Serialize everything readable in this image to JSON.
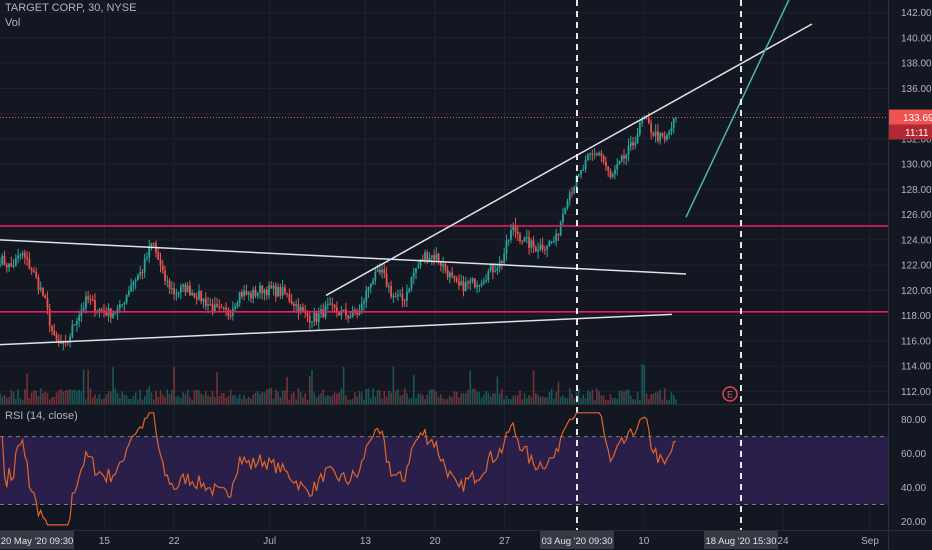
{
  "header": {
    "symbol_title": "TARGET CORP, 30, NYSE",
    "volume_label": "Vol",
    "rsi_label": "RSI (14, close)"
  },
  "price_badges": {
    "last_price": "133.69",
    "countdown": "11:11"
  },
  "earnings_marker": "E",
  "time_badges": {
    "start": "20 May '20  09:30",
    "cursor_1": "03 Aug '20  09:30",
    "cursor_2": "18 Aug '20  15:30"
  },
  "colors": {
    "background": "#131722",
    "up": "#26a69a",
    "down": "#ef5350",
    "rsi_line": "#e0652a",
    "rsi_band": "#2a1f4a",
    "hline": "#e91e63",
    "trendline": "#e0e3eb",
    "teal_line": "#4db6ac"
  },
  "chart_data": [
    {
      "type": "candlestick",
      "title": "TARGET CORP, 30, NYSE",
      "interval_minutes": 30,
      "ylim": [
        111,
        143
      ],
      "y_ticks": [
        112,
        114,
        116,
        118,
        120,
        122,
        124,
        126,
        128,
        130,
        132,
        134,
        136,
        138,
        140,
        142
      ],
      "x_tick_labels": [
        "15",
        "22",
        "Jul",
        "13",
        "20",
        "27",
        "10",
        "24",
        "Sep"
      ],
      "last_price": 133.69,
      "horizontal_levels": [
        125.1,
        118.3
      ],
      "close_path": [
        {
          "x": "2020-05-20",
          "y": 122.5
        },
        {
          "x": "2020-05-21",
          "y": 121.8
        },
        {
          "x": "2020-05-22",
          "y": 122.9
        },
        {
          "x": "2020-05-26",
          "y": 121.5
        },
        {
          "x": "2020-05-27",
          "y": 119.5
        },
        {
          "x": "2020-05-28",
          "y": 116.0
        },
        {
          "x": "2020-05-29",
          "y": 115.5
        },
        {
          "x": "2020-06-01",
          "y": 117.8
        },
        {
          "x": "2020-06-02",
          "y": 119.3
        },
        {
          "x": "2020-06-03",
          "y": 118.5
        },
        {
          "x": "2020-06-04",
          "y": 118.2
        },
        {
          "x": "2020-06-05",
          "y": 118.5
        },
        {
          "x": "2020-06-08",
          "y": 120.5
        },
        {
          "x": "2020-06-09",
          "y": 121.5
        },
        {
          "x": "2020-06-10",
          "y": 123.9
        },
        {
          "x": "2020-06-11",
          "y": 121.0
        },
        {
          "x": "2020-06-12",
          "y": 119.8
        },
        {
          "x": "2020-06-15",
          "y": 120.2
        },
        {
          "x": "2020-06-16",
          "y": 119.7
        },
        {
          "x": "2020-06-17",
          "y": 119.0
        },
        {
          "x": "2020-06-18",
          "y": 118.3
        },
        {
          "x": "2020-06-19",
          "y": 118.2
        },
        {
          "x": "2020-06-22",
          "y": 119.8
        },
        {
          "x": "2020-06-23",
          "y": 119.6
        },
        {
          "x": "2020-06-24",
          "y": 120.1
        },
        {
          "x": "2020-06-25",
          "y": 120.0
        },
        {
          "x": "2020-06-26",
          "y": 119.8
        },
        {
          "x": "2020-06-29",
          "y": 119.0
        },
        {
          "x": "2020-06-30",
          "y": 118.0
        },
        {
          "x": "2020-07-01",
          "y": 117.8
        },
        {
          "x": "2020-07-02",
          "y": 118.6
        },
        {
          "x": "2020-07-06",
          "y": 118.3
        },
        {
          "x": "2020-07-07",
          "y": 118.0
        },
        {
          "x": "2020-07-08",
          "y": 118.3
        },
        {
          "x": "2020-07-09",
          "y": 120.8
        },
        {
          "x": "2020-07-10",
          "y": 121.4
        },
        {
          "x": "2020-07-13",
          "y": 119.6
        },
        {
          "x": "2020-07-14",
          "y": 119.2
        },
        {
          "x": "2020-07-15",
          "y": 121.5
        },
        {
          "x": "2020-07-16",
          "y": 122.8
        },
        {
          "x": "2020-07-17",
          "y": 122.7
        },
        {
          "x": "2020-07-20",
          "y": 121.5
        },
        {
          "x": "2020-07-21",
          "y": 120.2
        },
        {
          "x": "2020-07-22",
          "y": 120.5
        },
        {
          "x": "2020-07-23",
          "y": 120.8
        },
        {
          "x": "2020-07-24",
          "y": 121.6
        },
        {
          "x": "2020-07-27",
          "y": 122.3
        },
        {
          "x": "2020-07-28",
          "y": 125.0
        },
        {
          "x": "2020-07-29",
          "y": 124.0
        },
        {
          "x": "2020-07-30",
          "y": 123.4
        },
        {
          "x": "2020-07-31",
          "y": 123.6
        },
        {
          "x": "2020-08-03",
          "y": 124.0
        },
        {
          "x": "2020-08-04",
          "y": 127.5
        },
        {
          "x": "2020-08-05",
          "y": 128.8
        },
        {
          "x": "2020-08-06",
          "y": 130.5
        },
        {
          "x": "2020-08-07",
          "y": 131.0
        },
        {
          "x": "2020-08-10",
          "y": 128.8
        },
        {
          "x": "2020-08-11",
          "y": 130.2
        },
        {
          "x": "2020-08-12",
          "y": 131.5
        },
        {
          "x": "2020-08-13",
          "y": 133.6
        },
        {
          "x": "2020-08-14",
          "y": 132.4
        },
        {
          "x": "2020-08-17",
          "y": 131.8
        },
        {
          "x": "2020-08-18",
          "y": 133.69
        }
      ],
      "rsi": {
        "label": "RSI (14, close)",
        "ylim": [
          15,
          88
        ],
        "y_ticks": [
          20,
          40,
          60,
          80
        ],
        "levels": [
          70,
          30
        ]
      },
      "volume": {
        "label": "Vol"
      }
    }
  ]
}
